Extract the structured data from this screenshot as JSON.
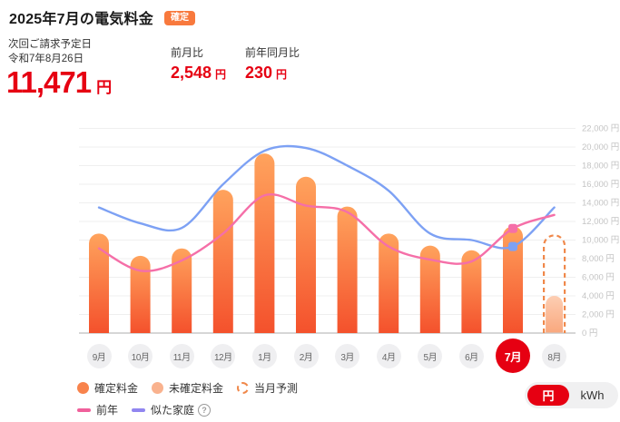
{
  "header": {
    "title": "2025年7月の電気料金",
    "badge": "確定",
    "next_billing_label": "次回ご請求予定日",
    "next_billing_date": "令和7年8月26日",
    "amount": "11,471",
    "amount_unit": "円",
    "mom_label": "前月比",
    "mom_value": "2,548",
    "mom_unit": "円",
    "yoy_label": "前年同月比",
    "yoy_value": "230",
    "yoy_unit": "円"
  },
  "chart_data": {
    "type": "bar",
    "categories": [
      "9月",
      "10月",
      "11月",
      "12月",
      "1月",
      "2月",
      "3月",
      "4月",
      "5月",
      "6月",
      "7月",
      "8月"
    ],
    "series": [
      {
        "name": "確定料金",
        "type": "bar",
        "values": [
          10700,
          8300,
          9100,
          15400,
          19300,
          16800,
          13600,
          10700,
          9400,
          8900,
          11471,
          null
        ]
      },
      {
        "name": "未確定料金",
        "type": "bar",
        "values": [
          null,
          null,
          null,
          null,
          null,
          null,
          null,
          null,
          null,
          null,
          null,
          4000
        ]
      },
      {
        "name": "当月予測",
        "type": "bar-outline",
        "values": [
          null,
          null,
          null,
          null,
          null,
          null,
          null,
          null,
          null,
          null,
          null,
          10500
        ]
      },
      {
        "name": "前年",
        "type": "line",
        "values": [
          9100,
          6700,
          7800,
          10700,
          14800,
          13700,
          13000,
          9300,
          7900,
          7700,
          11241,
          12700
        ]
      },
      {
        "name": "似た家庭",
        "type": "line",
        "values": [
          13500,
          11800,
          11300,
          16000,
          19600,
          19900,
          18000,
          15300,
          10700,
          10000,
          9300,
          13500
        ]
      }
    ],
    "ylim": [
      0,
      22000
    ],
    "ytick_step": 2000,
    "ytick_suffix": " 円",
    "grid": true,
    "legend_position": "bottom",
    "selected_month": "7月",
    "highlight_index": 10
  },
  "legend": {
    "confirmed": "確定料金",
    "unconfirmed": "未確定料金",
    "forecast": "当月予測",
    "prev_year": "前年",
    "similar": "似た家庭"
  },
  "unit_toggle": {
    "yen": "円",
    "kwh": "kWh"
  },
  "icons": {
    "confirmed_dot": "orange-dot-icon",
    "unconfirmed_dot": "light-orange-dot-icon",
    "forecast_circle": "dashed-circle-icon",
    "help": "question-mark-circle-icon"
  },
  "colors": {
    "accent_red": "#e60012",
    "badge_orange": "#f8793d",
    "bar_top": "#ffa35d",
    "bar_bottom": "#f4512c",
    "unconfirmed_top": "#fdceb3",
    "unconfirmed_bottom": "#f9a87e",
    "forecast_dash": "#f0884a",
    "line_prev_year": "#f56fa8",
    "line_similar": "#7da1f4",
    "legend_confirmed": "#f8834c",
    "legend_unconfirmed": "#f9b28e",
    "legend_prev": "#f0609b",
    "legend_similar": "#9186f0",
    "grid": "#efefef",
    "axis": "#c9c9c9",
    "tick_text": "#c4c4c4",
    "pill_bg": "#efeff1"
  }
}
